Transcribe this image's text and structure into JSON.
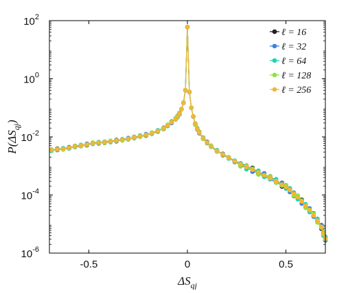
{
  "chart_data": {
    "type": "line",
    "title": "",
    "xlabel_parts": [
      "Δ",
      "S",
      "qj"
    ],
    "ylabel_parts": [
      "P(Δ",
      "S",
      "qj",
      ")"
    ],
    "xlim": [
      -0.7,
      0.7
    ],
    "ylim": [
      1e-06,
      100
    ],
    "yscale": "log",
    "xticks": [
      -0.5,
      0,
      0.5
    ],
    "xtick_labels": [
      "-0.5",
      "0",
      "0.5"
    ],
    "yticks": [
      {
        "value": 1e-06,
        "base": "10",
        "exp": "-6"
      },
      {
        "value": 0.0001,
        "base": "10",
        "exp": "-4"
      },
      {
        "value": 0.01,
        "base": "10",
        "exp": "-2"
      },
      {
        "value": 1,
        "base": "10",
        "exp": "0"
      },
      {
        "value": 100,
        "base": "10",
        "exp": "2"
      }
    ],
    "grid": false,
    "legend_position": "top-right",
    "legend_prefix": "ℓ =",
    "series": [
      {
        "name": "16",
        "color": "#2b1b3a"
      },
      {
        "name": "32",
        "color": "#3f7fe0"
      },
      {
        "name": "64",
        "color": "#1ed3b4"
      },
      {
        "name": "128",
        "color": "#8ee23a"
      },
      {
        "name": "256",
        "color": "#f0b63a"
      }
    ],
    "x": [
      -0.69,
      -0.66,
      -0.63,
      -0.6,
      -0.57,
      -0.54,
      -0.51,
      -0.48,
      -0.45,
      -0.42,
      -0.39,
      -0.36,
      -0.33,
      -0.3,
      -0.27,
      -0.24,
      -0.21,
      -0.18,
      -0.15,
      -0.12,
      -0.1,
      -0.08,
      -0.06,
      -0.05,
      -0.04,
      -0.03,
      -0.02,
      -0.01,
      0,
      0.01,
      0.02,
      0.03,
      0.04,
      0.05,
      0.06,
      0.08,
      0.1,
      0.12,
      0.15,
      0.18,
      0.21,
      0.24,
      0.27,
      0.3,
      0.33,
      0.36,
      0.39,
      0.42,
      0.45,
      0.48,
      0.5,
      0.52,
      0.54,
      0.56,
      0.58,
      0.6,
      0.62,
      0.64,
      0.66,
      0.68,
      0.69,
      0.7
    ],
    "y_base": [
      0.0035,
      0.0037,
      0.0039,
      0.0042,
      0.0046,
      0.005,
      0.0055,
      0.006,
      0.0063,
      0.0066,
      0.007,
      0.0074,
      0.008,
      0.0086,
      0.0094,
      0.0105,
      0.0117,
      0.0132,
      0.016,
      0.02,
      0.025,
      0.032,
      0.042,
      0.05,
      0.062,
      0.09,
      0.15,
      0.4,
      60,
      0.35,
      0.1,
      0.05,
      0.028,
      0.019,
      0.014,
      0.009,
      0.0064,
      0.0047,
      0.0033,
      0.0025,
      0.0019,
      0.00145,
      0.00115,
      0.00092,
      0.00074,
      0.0006,
      0.00048,
      0.00038,
      0.0003,
      0.00023,
      0.00019,
      0.00015,
      0.00011,
      8.5e-05,
      6e-05,
      4.3e-05,
      3e-05,
      2e-05,
      1.3e-05,
      8e-06,
      4.5e-06,
      3.2e-06
    ]
  }
}
